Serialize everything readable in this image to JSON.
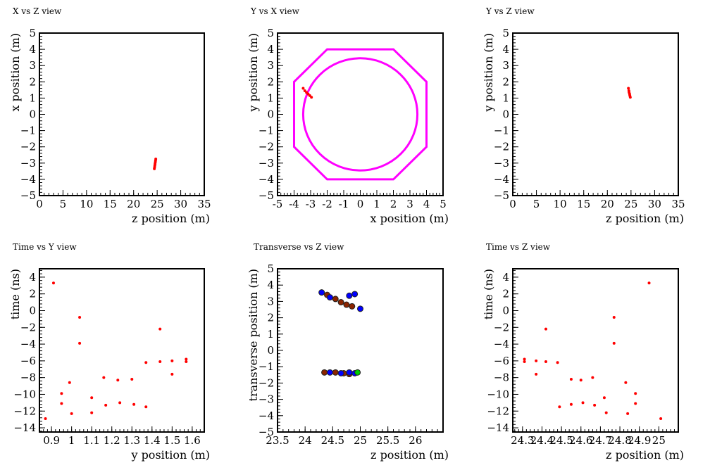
{
  "chart_data": [
    {
      "type": "scatter",
      "title": "X vs Z view",
      "xlabel": "z position (m)",
      "ylabel": "x position (m)",
      "xlim": [
        0,
        35
      ],
      "ylim": [
        -5,
        5
      ],
      "xticks": [
        0,
        5,
        10,
        15,
        20,
        25,
        30,
        35
      ],
      "yticks": [
        -5,
        -4,
        -3,
        -2,
        -1,
        0,
        1,
        2,
        3,
        4,
        5
      ],
      "grid": false,
      "series": [
        {
          "color": "#ff0000",
          "points": [
            [
              24.4,
              -3.35
            ],
            [
              24.45,
              -3.25
            ],
            [
              24.5,
              -3.15
            ],
            [
              24.55,
              -3.05
            ],
            [
              24.6,
              -2.95
            ],
            [
              24.65,
              -2.85
            ],
            [
              24.7,
              -2.75
            ]
          ]
        }
      ]
    },
    {
      "type": "scatter",
      "title": "Y vs X view",
      "xlabel": "x position (m)",
      "ylabel": "y position (m)",
      "xlim": [
        -5,
        5
      ],
      "ylim": [
        -5,
        5
      ],
      "xticks": [
        -5,
        -4,
        -3,
        -2,
        -1,
        0,
        1,
        2,
        3,
        4,
        5
      ],
      "yticks": [
        -5,
        -4,
        -3,
        -2,
        -1,
        0,
        1,
        2,
        3,
        4,
        5
      ],
      "grid": false,
      "detector_outline_color": "#ff00ff",
      "octagon": [
        [
          -2,
          4
        ],
        [
          2,
          4
        ],
        [
          4,
          2
        ],
        [
          4,
          -2
        ],
        [
          2,
          -4
        ],
        [
          -2,
          -4
        ],
        [
          -4,
          -2
        ],
        [
          -4,
          2
        ]
      ],
      "circle": {
        "cx": 0,
        "cy": 0,
        "r": 3.45
      },
      "series": [
        {
          "color": "#ff0000",
          "points": [
            [
              -3.45,
              1.6
            ],
            [
              -3.35,
              1.45
            ],
            [
              -3.25,
              1.35
            ],
            [
              -3.15,
              1.25
            ],
            [
              -3.05,
              1.15
            ],
            [
              -2.95,
              1.05
            ]
          ]
        }
      ]
    },
    {
      "type": "scatter",
      "title": "Y vs Z view",
      "xlabel": "z position (m)",
      "ylabel": "y position (m)",
      "xlim": [
        0,
        35
      ],
      "ylim": [
        -5,
        5
      ],
      "xticks": [
        0,
        5,
        10,
        15,
        20,
        25,
        30,
        35
      ],
      "yticks": [
        -5,
        -4,
        -3,
        -2,
        -1,
        0,
        1,
        2,
        3,
        4,
        5
      ],
      "grid": false,
      "series": [
        {
          "color": "#ff0000",
          "points": [
            [
              24.45,
              1.6
            ],
            [
              24.55,
              1.45
            ],
            [
              24.6,
              1.35
            ],
            [
              24.7,
              1.25
            ],
            [
              24.75,
              1.15
            ],
            [
              24.85,
              1.05
            ]
          ]
        }
      ]
    },
    {
      "type": "scatter",
      "title": "Time vs Y view",
      "xlabel": "y position (m)",
      "ylabel": "time (ns)",
      "xlim": [
        0.84,
        1.66
      ],
      "ylim": [
        -14.5,
        5
      ],
      "xticks": [
        0.9,
        1,
        1.1,
        1.2,
        1.3,
        1.4,
        1.5,
        1.6
      ],
      "xtick_labels": [
        "0.9",
        "1",
        "1.1",
        "1.2",
        "1.3",
        "1.4",
        "1.5",
        "1.6"
      ],
      "yticks": [
        -14,
        -12,
        -10,
        -8,
        -6,
        -4,
        -2,
        0,
        2,
        4
      ],
      "grid": false,
      "series": [
        {
          "color": "#ff0000",
          "points": [
            [
              0.87,
              -12.9
            ],
            [
              0.91,
              3.3
            ],
            [
              0.95,
              -9.9
            ],
            [
              0.95,
              -11.1
            ],
            [
              0.99,
              -8.6
            ],
            [
              1.0,
              -12.3
            ],
            [
              1.04,
              -0.8
            ],
            [
              1.04,
              -3.9
            ],
            [
              1.1,
              -10.4
            ],
            [
              1.1,
              -12.2
            ],
            [
              1.16,
              -8.0
            ],
            [
              1.17,
              -11.3
            ],
            [
              1.23,
              -8.3
            ],
            [
              1.24,
              -11.0
            ],
            [
              1.3,
              -8.2
            ],
            [
              1.31,
              -11.2
            ],
            [
              1.37,
              -6.2
            ],
            [
              1.37,
              -11.5
            ],
            [
              1.44,
              -2.2
            ],
            [
              1.44,
              -6.1
            ],
            [
              1.5,
              -6.0
            ],
            [
              1.5,
              -7.6
            ],
            [
              1.57,
              -5.8
            ],
            [
              1.57,
              -6.1
            ]
          ]
        }
      ]
    },
    {
      "type": "scatter",
      "title": "Transverse vs Z view",
      "xlabel": "z position (m)",
      "ylabel": "transverse position (m)",
      "xlim": [
        23.5,
        26.5
      ],
      "ylim": [
        -5,
        5
      ],
      "xticks": [
        23.5,
        24,
        24.5,
        25,
        25.5,
        26
      ],
      "xtick_labels": [
        "23.5",
        "24",
        "24.5",
        "25",
        "25.5",
        "26"
      ],
      "yticks": [
        -5,
        -4,
        -3,
        -2,
        -1,
        0,
        1,
        2,
        3,
        4,
        5
      ],
      "grid": false,
      "series": [
        {
          "color": "#8b2500",
          "points": [
            [
              24.4,
              3.4
            ],
            [
              24.55,
              3.15
            ],
            [
              24.65,
              2.95
            ],
            [
              24.75,
              2.8
            ],
            [
              24.85,
              2.7
            ],
            [
              24.35,
              -1.35
            ],
            [
              24.55,
              -1.35
            ],
            [
              24.7,
              -1.4
            ],
            [
              24.8,
              -1.45
            ]
          ]
        },
        {
          "color": "#0000ff",
          "points": [
            [
              24.3,
              3.55
            ],
            [
              24.45,
              3.25
            ],
            [
              24.8,
              3.35
            ],
            [
              24.9,
              3.45
            ],
            [
              25.0,
              2.55
            ],
            [
              24.45,
              -1.35
            ],
            [
              24.65,
              -1.4
            ],
            [
              24.8,
              -1.35
            ],
            [
              24.9,
              -1.4
            ]
          ]
        },
        {
          "color": "#00cc00",
          "points": [
            [
              24.95,
              -1.35
            ]
          ]
        }
      ]
    },
    {
      "type": "scatter",
      "title": "Time vs Z view",
      "xlabel": "z position (m)",
      "ylabel": "time (ns)",
      "xlim": [
        24.25,
        25.1
      ],
      "ylim": [
        -14.5,
        5
      ],
      "xticks": [
        24.3,
        24.4,
        24.5,
        24.6,
        24.7,
        24.8,
        24.9,
        25
      ],
      "xtick_labels": [
        "24.3",
        "24.4",
        "24.5",
        "24.6",
        "24.7",
        "24.8",
        "24.9",
        "25"
      ],
      "yticks": [
        -14,
        -12,
        -10,
        -8,
        -6,
        -4,
        -2,
        0,
        2,
        4
      ],
      "grid": false,
      "series": [
        {
          "color": "#ff0000",
          "points": [
            [
              24.31,
              -5.8
            ],
            [
              24.31,
              -6.1
            ],
            [
              24.37,
              -6.0
            ],
            [
              24.37,
              -7.6
            ],
            [
              24.42,
              -2.2
            ],
            [
              24.42,
              -6.1
            ],
            [
              24.48,
              -6.2
            ],
            [
              24.49,
              -11.5
            ],
            [
              24.55,
              -8.2
            ],
            [
              24.55,
              -11.2
            ],
            [
              24.6,
              -8.3
            ],
            [
              24.61,
              -11.0
            ],
            [
              24.66,
              -8.0
            ],
            [
              24.67,
              -11.3
            ],
            [
              24.72,
              -10.4
            ],
            [
              24.73,
              -12.2
            ],
            [
              24.77,
              -0.8
            ],
            [
              24.77,
              -3.9
            ],
            [
              24.83,
              -8.6
            ],
            [
              24.84,
              -12.3
            ],
            [
              24.88,
              -9.9
            ],
            [
              24.88,
              -11.1
            ],
            [
              24.95,
              3.3
            ],
            [
              25.01,
              -12.9
            ]
          ]
        }
      ]
    }
  ]
}
